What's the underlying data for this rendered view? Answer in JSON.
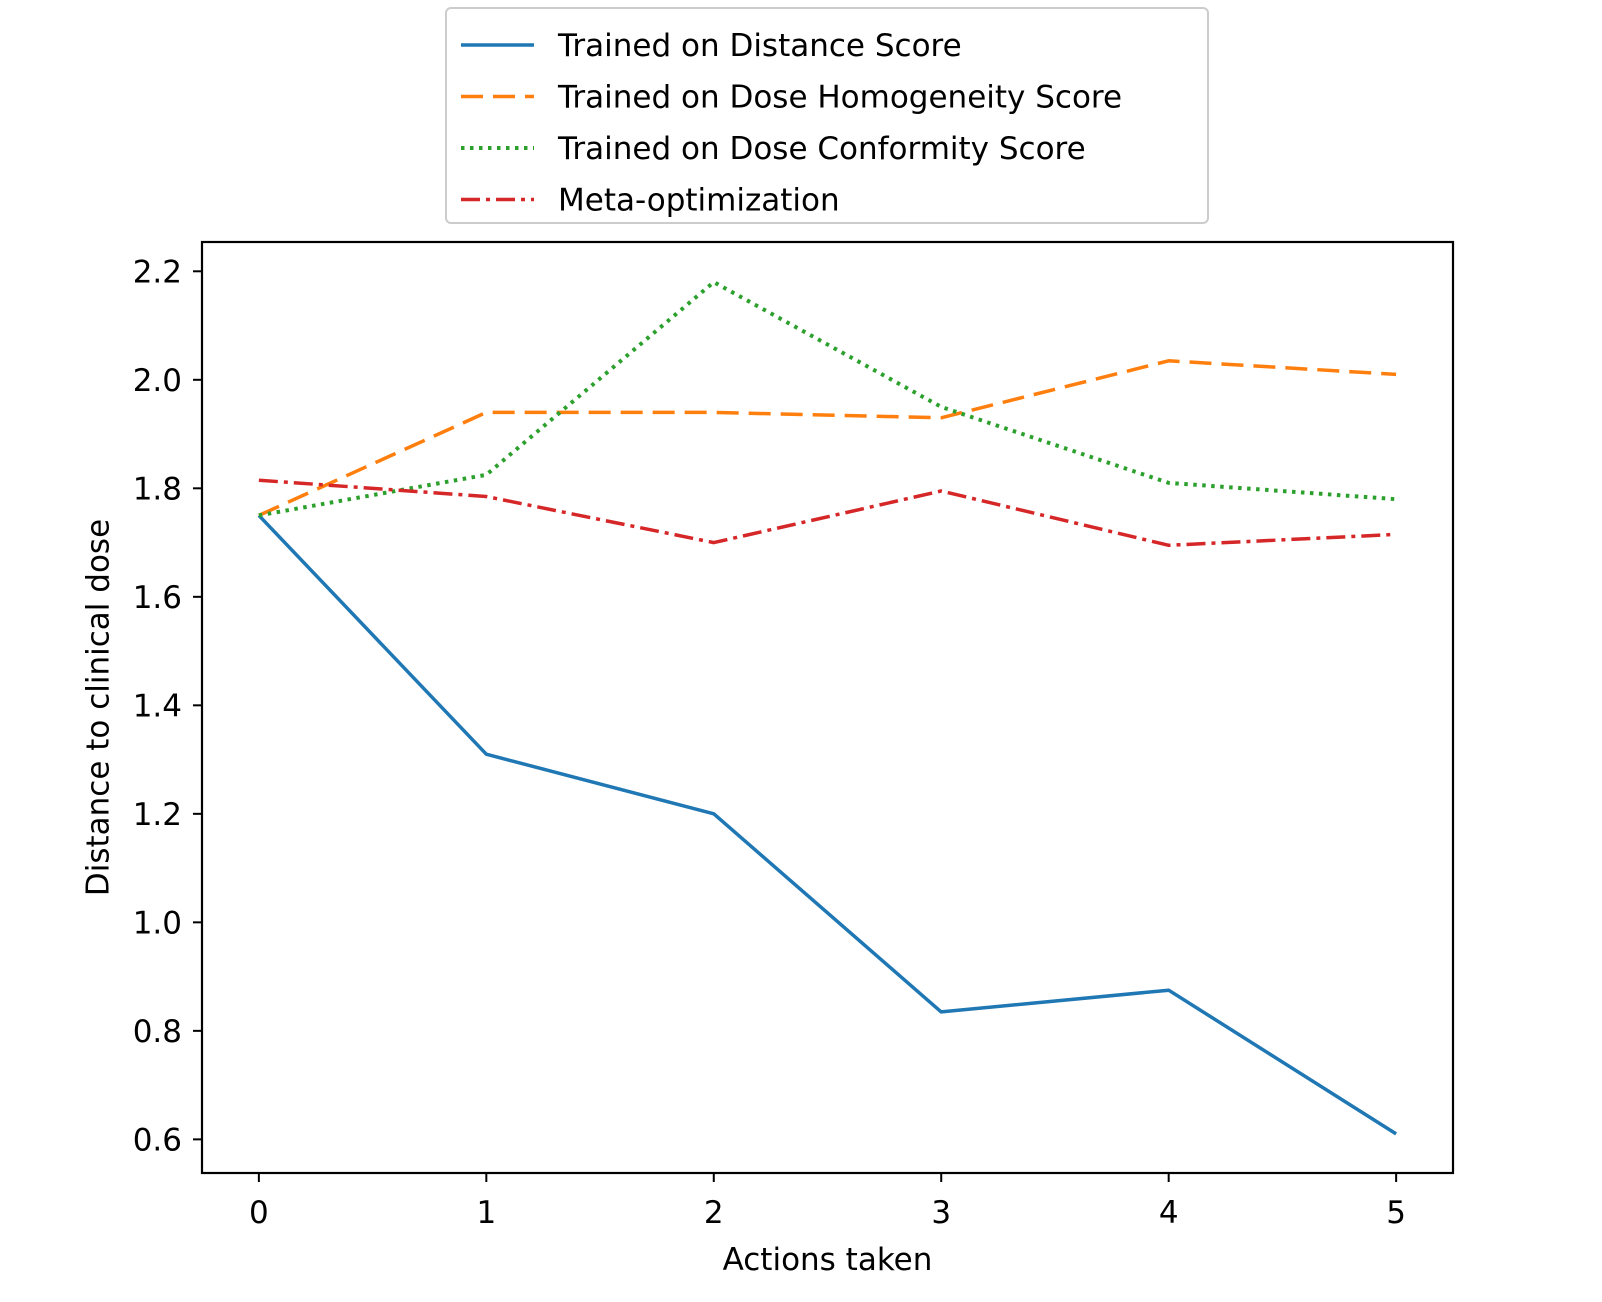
{
  "chart_data": {
    "type": "line",
    "title": "",
    "xlabel": "Actions taken",
    "ylabel": "Distance to clinical dose",
    "x": [
      0,
      1,
      2,
      3,
      4,
      5
    ],
    "xticks": [
      0,
      1,
      2,
      3,
      4,
      5
    ],
    "yticks": [
      0.6,
      0.8,
      1.0,
      1.2,
      1.4,
      1.6,
      1.8,
      2.0,
      2.2
    ],
    "xlim": [
      -0.25,
      5.25
    ],
    "ylim": [
      0.538,
      2.254
    ],
    "grid": false,
    "legend_position": "upper center, above plot",
    "series": [
      {
        "name": "Trained on Distance Score",
        "values": [
          1.75,
          1.31,
          1.2,
          0.835,
          0.875,
          0.61
        ],
        "color": "#1f77b4",
        "linestyle": "solid"
      },
      {
        "name": "Trained on Dose Homogeneity Score",
        "values": [
          1.75,
          1.94,
          1.94,
          1.93,
          2.035,
          2.01
        ],
        "color": "#ff7f0e",
        "linestyle": "dashed"
      },
      {
        "name": "Trained on Dose Conformity Score",
        "values": [
          1.75,
          1.825,
          2.18,
          1.95,
          1.81,
          1.78
        ],
        "color": "#2ca02c",
        "linestyle": "dotted"
      },
      {
        "name": "Meta-optimization",
        "values": [
          1.815,
          1.785,
          1.7,
          1.795,
          1.695,
          1.715
        ],
        "color": "#d62728",
        "linestyle": "dashdot"
      }
    ]
  }
}
